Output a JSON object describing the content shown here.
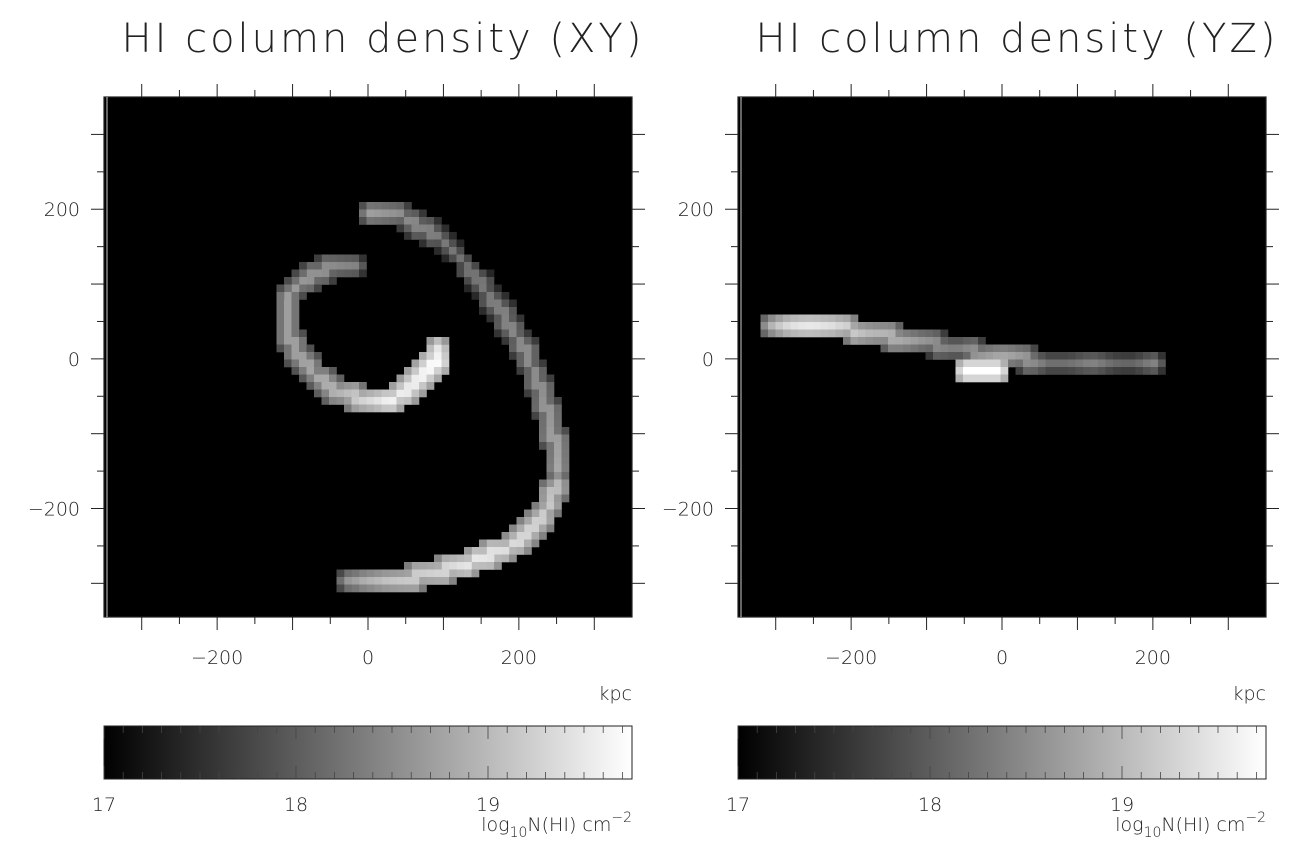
{
  "chart_data": [
    {
      "type": "heatmap",
      "title": "HI column density (XY)",
      "xlabel": "kpc",
      "ylabel": "",
      "xlim": [
        -350,
        350
      ],
      "ylim": [
        -345,
        350
      ],
      "xticks": [
        -200,
        0,
        200
      ],
      "yticks": [
        200,
        0,
        -200
      ],
      "colorbar": {
        "range": [
          17,
          19.75
        ],
        "ticks": [
          17,
          18,
          19
        ],
        "label": "log₁₀N(HI) cm⁻²",
        "label_base": "log",
        "label_sub": "10",
        "label_mid": "N(HI) cm",
        "label_sup": "−2",
        "colormap": "grayscale"
      },
      "features": [
        {
          "name": "",
          "points": [
            [
              0,
              196
            ],
            [
              25,
              196
            ],
            [
              45,
              192
            ],
            [
              68,
              178
            ],
            [
              100,
              158
            ],
            [
              130,
              126
            ],
            [
              160,
              86
            ],
            [
              185,
              48
            ],
            [
              210,
              8
            ],
            [
              225,
              -30
            ],
            [
              238,
              -72
            ],
            [
              248,
              -112
            ],
            [
              255,
              -150
            ]
          ],
          "values": [
            18.7,
            18.6,
            18.5,
            18.4,
            18.3,
            18.2,
            18.3,
            18.4,
            18.5,
            18.5,
            18.6,
            18.7,
            18.8
          ]
        },
        {
          "name": "",
          "points": [
            [
              250,
              -170
            ],
            [
              232,
              -210
            ],
            [
              205,
              -240
            ],
            [
              175,
              -258
            ],
            [
              140,
              -270
            ],
            [
              105,
              -280
            ],
            [
              70,
              -290
            ],
            [
              30,
              -296
            ],
            [
              0,
              -298
            ],
            [
              -25,
              -292
            ]
          ],
          "values": [
            19.0,
            19.2,
            19.3,
            19.4,
            19.5,
            19.3,
            19.2,
            19.1,
            18.9,
            18.6
          ]
        },
        {
          "name": "",
          "points": [
            [
              -20,
              128
            ],
            [
              -50,
              122
            ],
            [
              -85,
              106
            ],
            [
              -110,
              80
            ],
            [
              -108,
              40
            ],
            [
              -92,
              5
            ],
            [
              -68,
              -25
            ],
            [
              -38,
              -45
            ],
            [
              0,
              -56
            ],
            [
              30,
              -56
            ],
            [
              55,
              -42
            ],
            [
              75,
              -22
            ],
            [
              88,
              -5
            ],
            [
              90,
              15
            ]
          ],
          "values": [
            18.4,
            18.5,
            18.6,
            18.7,
            18.7,
            18.7,
            18.8,
            18.9,
            19.3,
            19.6,
            19.5,
            19.6,
            19.7,
            19.4
          ]
        }
      ]
    },
    {
      "type": "heatmap",
      "title": "HI column density (YZ)",
      "xlabel": "kpc",
      "ylabel": "",
      "xlim": [
        -350,
        350
      ],
      "ylim": [
        -345,
        350
      ],
      "xticks": [
        -200,
        0,
        200
      ],
      "yticks": [
        200,
        0,
        -200
      ],
      "colorbar": {
        "range": [
          17,
          19.75
        ],
        "ticks": [
          17,
          18,
          19
        ],
        "label": "log₁₀N(HI) cm⁻²",
        "label_base": "log",
        "label_sub": "10",
        "label_mid": "N(HI) cm",
        "label_sup": "−2",
        "colormap": "grayscale"
      },
      "features": [
        {
          "name": "",
          "points": [
            [
              -305,
              40
            ],
            [
              -280,
              45
            ],
            [
              -255,
              46
            ],
            [
              -230,
              44
            ],
            [
              -205,
              40
            ],
            [
              -180,
              36
            ],
            [
              -150,
              30
            ],
            [
              -120,
              26
            ],
            [
              -90,
              20
            ],
            [
              -60,
              14
            ],
            [
              -30,
              8
            ],
            [
              0,
              5
            ],
            [
              30,
              0
            ],
            [
              60,
              -5
            ],
            [
              90,
              -8
            ],
            [
              120,
              -5
            ],
            [
              150,
              -8
            ],
            [
              180,
              -5
            ],
            [
              200,
              -2
            ]
          ],
          "values": [
            18.9,
            19.4,
            19.5,
            19.4,
            19.2,
            19.0,
            18.9,
            18.7,
            18.5,
            18.3,
            18.6,
            18.8,
            18.6,
            18.2,
            18.2,
            18.4,
            18.1,
            18.1,
            18.4
          ]
        },
        {
          "name": "",
          "points": [
            [
              -50,
              -15
            ],
            [
              -30,
              -15
            ],
            [
              -10,
              -15
            ]
          ],
          "values": [
            19.75,
            19.75,
            19.75
          ]
        }
      ]
    }
  ]
}
